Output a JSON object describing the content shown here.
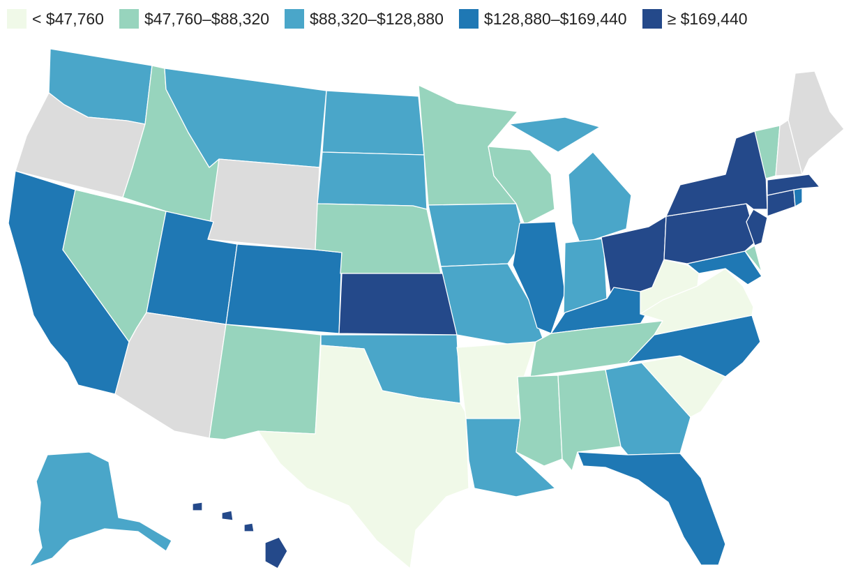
{
  "legend": {
    "items": [
      {
        "label": "< $47,760",
        "color": "#f0f9e8"
      },
      {
        "label": "$47,760–$88,320",
        "color": "#97d4bd"
      },
      {
        "label": "$88,320–$128,880",
        "color": "#4aa6c9"
      },
      {
        "label": "$128,880–$169,440",
        "color": "#1f78b4"
      },
      {
        "label": "≥ $169,440",
        "color": "#24498a"
      }
    ]
  },
  "no_data_color": "#dcdcdc",
  "states": {
    "WA": 2,
    "OR": -1,
    "CA": 3,
    "NV": 1,
    "ID": 1,
    "MT": 2,
    "WY": -1,
    "UT": 3,
    "AZ": -1,
    "CO": 3,
    "NM": 1,
    "ND": 2,
    "SD": 2,
    "NE": 1,
    "KS": 4,
    "OK": 2,
    "TX": 0,
    "MN": 1,
    "IA": 2,
    "MO": 2,
    "AR": 0,
    "LA": 2,
    "WI": 1,
    "IL": 3,
    "MI": 2,
    "IN": 2,
    "OH": 4,
    "KY": 3,
    "TN": 1,
    "MS": 1,
    "AL": 1,
    "GA": 2,
    "FL": 3,
    "SC": 0,
    "NC": 3,
    "VA": 0,
    "WV": 0,
    "MD": 3,
    "DE": 1,
    "PA": 4,
    "NJ": 4,
    "NY": 4,
    "CT": 4,
    "RI": 3,
    "MA": 4,
    "VT": 1,
    "NH": -1,
    "ME": -1,
    "AK": 2,
    "HI": 4
  }
}
